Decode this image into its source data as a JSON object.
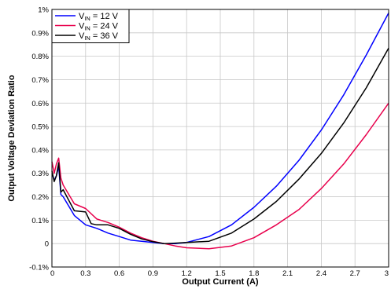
{
  "chart_data": {
    "type": "line",
    "xlabel": "Output Current (A)",
    "ylabel": "Output Voltage Deviation Ratio",
    "xlim": [
      0,
      3
    ],
    "ylim": [
      -0.1,
      1.0
    ],
    "x_ticks": [
      0,
      0.3,
      0.6,
      0.9,
      1.2,
      1.5,
      1.8,
      2.1,
      2.4,
      2.7,
      3
    ],
    "x_tick_labels": [
      "0",
      "0.3",
      "0.6",
      "0.9",
      "1.2",
      "1.5",
      "1.8",
      "2.1",
      "2.4",
      "2.7",
      "3"
    ],
    "y_ticks": [
      -0.1,
      0,
      0.1,
      0.2,
      0.3,
      0.4,
      0.5,
      0.6,
      0.7,
      0.8,
      0.9,
      1.0
    ],
    "y_tick_labels": [
      "-0.1%",
      "0",
      "0.1%",
      "0.2%",
      "0.3%",
      "0.4%",
      "0.5%",
      "0.6%",
      "0.7%",
      "0.8%",
      "0.9%",
      "1%"
    ],
    "grid": true,
    "legend_position": "top-left",
    "series": [
      {
        "name": "V_IN = 12 V",
        "label_main": "V",
        "label_sub": "IN",
        "label_rest": " = 12 V",
        "color": "#0000ff",
        "x": [
          0,
          0.02,
          0.04,
          0.06,
          0.08,
          0.1,
          0.2,
          0.3,
          0.4,
          0.5,
          0.6,
          0.7,
          0.8,
          0.9,
          1.0,
          1.1,
          1.2,
          1.4,
          1.6,
          1.8,
          2.0,
          2.2,
          2.4,
          2.6,
          2.8,
          3.0
        ],
        "y": [
          0.3,
          0.27,
          0.29,
          0.33,
          0.21,
          0.2,
          0.12,
          0.08,
          0.065,
          0.045,
          0.03,
          0.015,
          0.01,
          0.005,
          0.0,
          0.0,
          0.005,
          0.03,
          0.08,
          0.155,
          0.245,
          0.355,
          0.485,
          0.635,
          0.805,
          0.985
        ]
      },
      {
        "name": "V_IN = 24 V",
        "label_main": "V",
        "label_sub": "IN",
        "label_rest": " = 24 V",
        "color": "#e8004c",
        "x": [
          0,
          0.02,
          0.04,
          0.06,
          0.08,
          0.1,
          0.2,
          0.3,
          0.4,
          0.5,
          0.6,
          0.7,
          0.8,
          0.9,
          1.0,
          1.1,
          1.2,
          1.4,
          1.6,
          1.8,
          2.0,
          2.2,
          2.4,
          2.6,
          2.8,
          3.0
        ],
        "y": [
          0.35,
          0.3,
          0.34,
          0.365,
          0.28,
          0.25,
          0.17,
          0.15,
          0.105,
          0.09,
          0.07,
          0.045,
          0.025,
          0.01,
          0.0,
          -0.01,
          -0.018,
          -0.022,
          -0.01,
          0.025,
          0.08,
          0.145,
          0.235,
          0.34,
          0.465,
          0.6
        ]
      },
      {
        "name": "V_IN = 36 V",
        "label_main": "V",
        "label_sub": "IN",
        "label_rest": " = 36 V",
        "color": "#000000",
        "x": [
          0,
          0.02,
          0.04,
          0.06,
          0.08,
          0.1,
          0.2,
          0.3,
          0.35,
          0.4,
          0.5,
          0.6,
          0.7,
          0.8,
          0.9,
          1.0,
          1.1,
          1.2,
          1.4,
          1.6,
          1.8,
          2.0,
          2.2,
          2.4,
          2.6,
          2.8,
          3.0
        ],
        "y": [
          0.31,
          0.265,
          0.29,
          0.345,
          0.22,
          0.23,
          0.14,
          0.135,
          0.085,
          0.08,
          0.08,
          0.065,
          0.04,
          0.02,
          0.008,
          0.0,
          0.002,
          0.005,
          0.01,
          0.045,
          0.105,
          0.18,
          0.275,
          0.385,
          0.515,
          0.665,
          0.835
        ]
      }
    ]
  }
}
